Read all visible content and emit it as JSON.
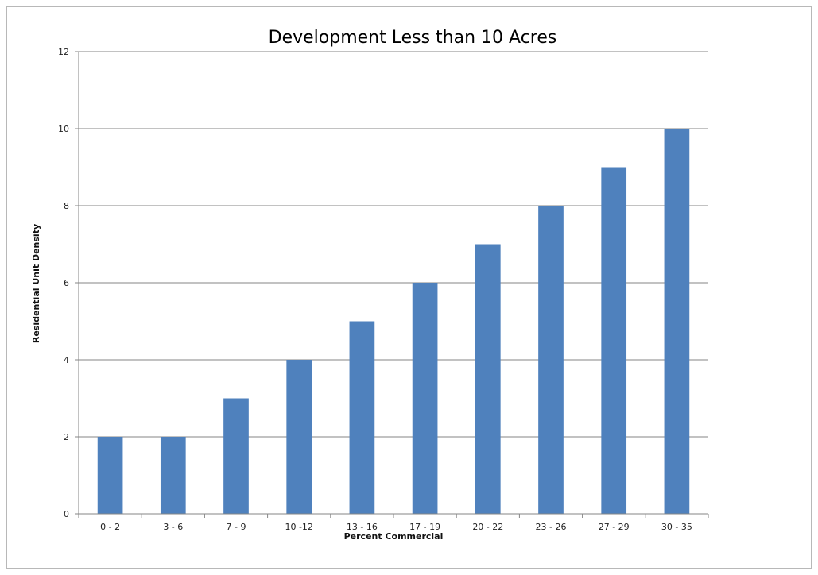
{
  "chart_data": {
    "type": "bar",
    "title": "Development Less than 10 Acres",
    "xlabel": "Percent Commercial",
    "ylabel": "Residential Unit Density",
    "categories": [
      "0 - 2",
      "3 - 6",
      "7 - 9",
      "10 -12",
      "13 - 16",
      "17 - 19",
      "20 - 22",
      "23 - 26",
      "27 - 29",
      "30 - 35"
    ],
    "values": [
      2,
      2,
      3,
      4,
      5,
      6,
      7,
      8,
      9,
      10
    ],
    "ylim": [
      0,
      12
    ],
    "yticks": [
      "0",
      "2",
      "4",
      "6",
      "8",
      "10",
      "12"
    ],
    "grid": true,
    "legend": "none",
    "colors": {
      "bar": "#4f81bd",
      "grid": "#868686",
      "axis": "#868686"
    }
  }
}
